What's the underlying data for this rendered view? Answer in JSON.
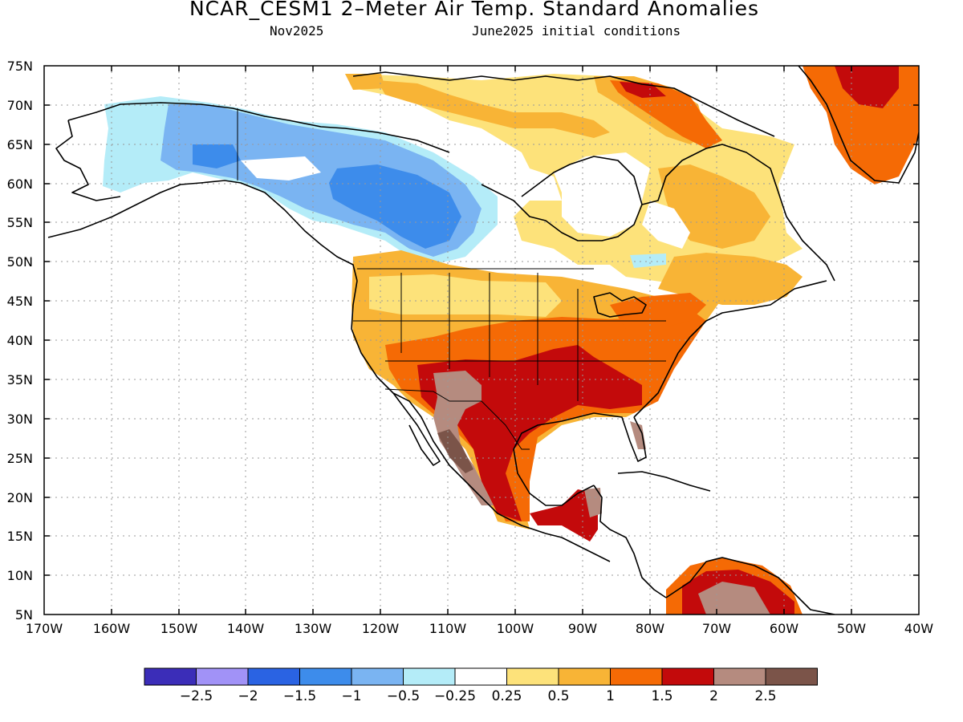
{
  "title": "NCAR_CESM1 2–Meter Air Temp. Standard Anomalies",
  "subtitle_left": "Nov2025",
  "subtitle_right": "June2025 initial conditions",
  "lat_labels": [
    "75N",
    "70N",
    "65N",
    "60N",
    "55N",
    "50N",
    "45N",
    "40N",
    "35N",
    "30N",
    "25N",
    "20N",
    "15N",
    "10N",
    "5N"
  ],
  "lon_labels": [
    "170W",
    "160W",
    "150W",
    "140W",
    "130W",
    "120W",
    "110W",
    "100W",
    "90W",
    "80W",
    "70W",
    "60W",
    "50W",
    "40W"
  ],
  "colorbar": {
    "colors": [
      "#3b2db8",
      "#a192f7",
      "#2a63e3",
      "#3d8ceb",
      "#7ab4f2",
      "#b4ecf8",
      "#ffffff",
      "#fde27a",
      "#f8b436",
      "#f56a05",
      "#c30a0b",
      "#b58b7f",
      "#7b5449"
    ],
    "labels": [
      "−2.5",
      "−2",
      "−1.5",
      "−1",
      "−0.5",
      "−0.25",
      "0.25",
      "0.5",
      "1",
      "1.5",
      "2",
      "2.5"
    ]
  }
}
